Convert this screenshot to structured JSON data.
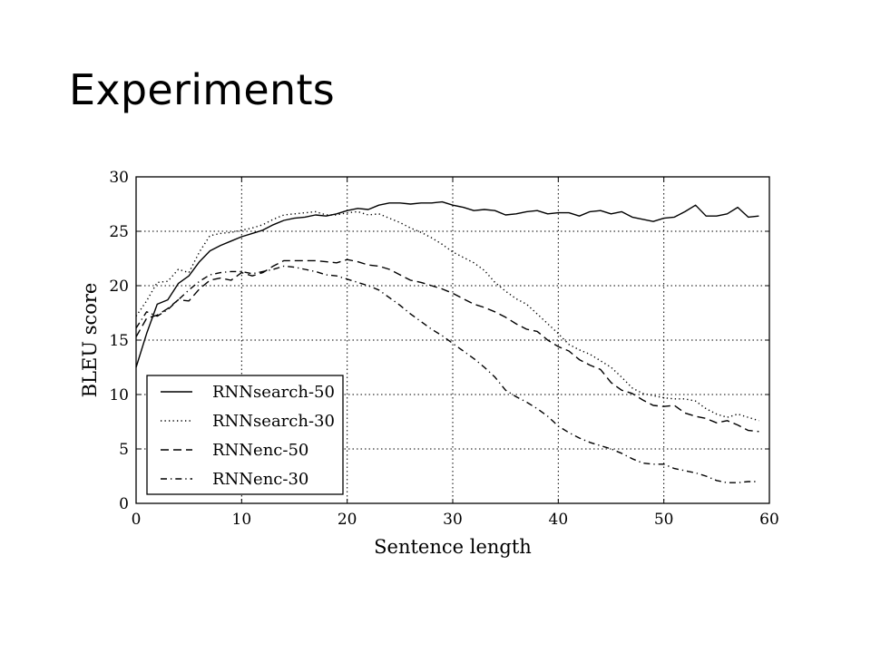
{
  "slide": {
    "title": "Experiments"
  },
  "colors": {
    "line": "#000000",
    "grid": "#000000",
    "background": "#ffffff"
  },
  "chart_data": {
    "type": "line",
    "title": "",
    "xlabel": "Sentence length",
    "ylabel": "BLEU score",
    "xlim": [
      0,
      60
    ],
    "ylim": [
      0,
      30
    ],
    "xticks": [
      0,
      10,
      20,
      30,
      40,
      50,
      60
    ],
    "yticks": [
      0,
      5,
      10,
      15,
      20,
      25,
      30
    ],
    "grid": true,
    "grid_style": "dotted",
    "legend_position": "lower-left",
    "series": [
      {
        "name": "RNNsearch-50",
        "dash": "solid",
        "x": [
          0,
          1,
          2,
          3,
          4,
          5,
          6,
          7,
          8,
          9,
          10,
          11,
          12,
          13,
          14,
          15,
          16,
          17,
          18,
          19,
          20,
          21,
          22,
          23,
          24,
          25,
          26,
          27,
          28,
          29,
          30,
          31,
          32,
          33,
          34,
          35,
          36,
          37,
          38,
          39,
          40,
          41,
          42,
          43,
          44,
          45,
          46,
          47,
          48,
          49,
          50,
          51,
          52,
          53,
          54,
          55,
          56,
          57,
          58,
          59
        ],
        "y": [
          12.5,
          15.6,
          18.3,
          18.7,
          20.2,
          20.9,
          22.2,
          23.2,
          23.7,
          24.1,
          24.5,
          24.8,
          25.1,
          25.6,
          26.0,
          26.2,
          26.3,
          26.5,
          26.4,
          26.6,
          26.9,
          27.1,
          27.0,
          27.4,
          27.6,
          27.6,
          27.5,
          27.6,
          27.6,
          27.7,
          27.4,
          27.2,
          26.9,
          27.0,
          26.9,
          26.5,
          26.6,
          26.8,
          26.9,
          26.6,
          26.7,
          26.7,
          26.4,
          26.8,
          26.9,
          26.6,
          26.8,
          26.3,
          26.1,
          25.9,
          26.2,
          26.3,
          26.8,
          27.4,
          26.4,
          26.4,
          26.6,
          27.2,
          26.3,
          26.4
        ]
      },
      {
        "name": "RNNsearch-30",
        "dash": "dotted",
        "x": [
          0,
          1,
          2,
          3,
          4,
          5,
          6,
          7,
          8,
          9,
          10,
          11,
          12,
          13,
          14,
          15,
          16,
          17,
          18,
          19,
          20,
          21,
          22,
          23,
          24,
          25,
          26,
          27,
          28,
          29,
          30,
          31,
          32,
          33,
          34,
          35,
          36,
          37,
          38,
          39,
          40,
          41,
          42,
          43,
          44,
          45,
          46,
          47,
          48,
          49,
          50,
          51,
          52,
          53,
          54,
          55,
          56,
          57,
          58,
          59
        ],
        "y": [
          17.2,
          18.6,
          20.3,
          20.4,
          21.5,
          21.2,
          23.1,
          24.6,
          24.8,
          24.9,
          25.1,
          25.3,
          25.6,
          26.1,
          26.5,
          26.6,
          26.7,
          26.8,
          26.5,
          26.5,
          26.7,
          26.8,
          26.5,
          26.6,
          26.2,
          25.8,
          25.3,
          24.9,
          24.4,
          23.8,
          23.1,
          22.6,
          22.1,
          21.4,
          20.3,
          19.5,
          18.8,
          18.3,
          17.4,
          16.5,
          15.6,
          14.6,
          14.1,
          13.7,
          13.1,
          12.5,
          11.6,
          10.6,
          10.1,
          9.9,
          9.7,
          9.6,
          9.6,
          9.4,
          8.7,
          8.2,
          7.9,
          8.2,
          7.9,
          7.6
        ]
      },
      {
        "name": "RNNenc-50",
        "dash": "dashed",
        "x": [
          0,
          1,
          2,
          3,
          4,
          5,
          6,
          7,
          8,
          9,
          10,
          11,
          12,
          13,
          14,
          15,
          16,
          17,
          18,
          19,
          20,
          21,
          22,
          23,
          24,
          25,
          26,
          27,
          28,
          29,
          30,
          31,
          32,
          33,
          34,
          35,
          36,
          37,
          38,
          39,
          40,
          41,
          42,
          43,
          44,
          45,
          46,
          47,
          48,
          49,
          50,
          51,
          52,
          53,
          54,
          55,
          56,
          57,
          58,
          59
        ],
        "y": [
          15.3,
          17.0,
          17.3,
          17.9,
          18.7,
          18.6,
          19.7,
          20.5,
          20.7,
          20.5,
          21.2,
          20.9,
          21.2,
          21.8,
          22.3,
          22.3,
          22.3,
          22.3,
          22.2,
          22.1,
          22.4,
          22.2,
          21.9,
          21.8,
          21.5,
          21.0,
          20.5,
          20.3,
          20.0,
          19.7,
          19.3,
          18.8,
          18.3,
          18.0,
          17.6,
          17.1,
          16.5,
          16.0,
          15.8,
          15.0,
          14.4,
          14.0,
          13.2,
          12.7,
          12.3,
          11.1,
          10.4,
          10.1,
          9.5,
          9.0,
          8.9,
          9.0,
          8.3,
          8.0,
          7.8,
          7.4,
          7.6,
          7.2,
          6.7,
          6.6
        ]
      },
      {
        "name": "RNNenc-30",
        "dash": "dashdot",
        "x": [
          0,
          1,
          2,
          3,
          4,
          5,
          6,
          7,
          8,
          9,
          10,
          11,
          12,
          13,
          14,
          15,
          16,
          17,
          18,
          19,
          20,
          21,
          22,
          23,
          24,
          25,
          26,
          27,
          28,
          29,
          30,
          31,
          32,
          33,
          34,
          35,
          36,
          37,
          38,
          39,
          40,
          41,
          42,
          43,
          44,
          45,
          46,
          47,
          48,
          49,
          50,
          51,
          52,
          53,
          54,
          55,
          56,
          57,
          58,
          59
        ],
        "y": [
          16.1,
          17.6,
          17.2,
          17.8,
          18.7,
          19.6,
          20.4,
          21.0,
          21.2,
          21.3,
          21.3,
          21.1,
          21.3,
          21.5,
          21.8,
          21.7,
          21.5,
          21.3,
          21.0,
          20.9,
          20.6,
          20.3,
          20.0,
          19.6,
          18.9,
          18.2,
          17.4,
          16.7,
          16.0,
          15.4,
          14.7,
          14.0,
          13.3,
          12.5,
          11.6,
          10.4,
          9.8,
          9.3,
          8.7,
          8.0,
          7.1,
          6.5,
          6.0,
          5.6,
          5.3,
          5.0,
          4.6,
          4.1,
          3.7,
          3.6,
          3.6,
          3.2,
          3.0,
          2.8,
          2.5,
          2.1,
          1.9,
          1.9,
          2.0,
          2.0
        ]
      }
    ]
  }
}
